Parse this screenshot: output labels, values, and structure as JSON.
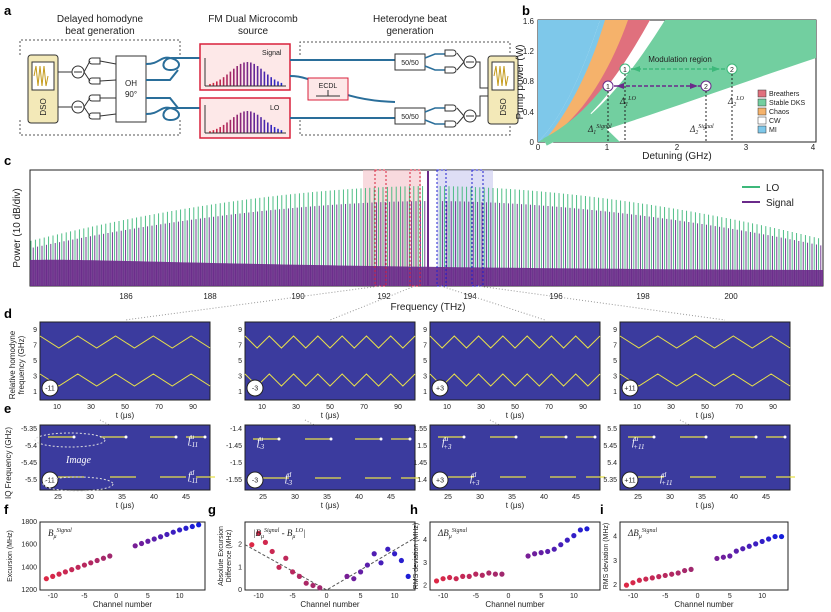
{
  "panel_labels": {
    "a": "a",
    "b": "b",
    "c": "c",
    "d": "d",
    "e": "e",
    "f": "f",
    "g": "g",
    "h": "h",
    "i": "i"
  },
  "colors": {
    "plot_bg": "#3b3b9e",
    "lo": "#3db87a",
    "signal": "#6a2a8a",
    "red": "#d9203b",
    "blue": "#2020d0",
    "yellow": "#e8e04a",
    "mi": "#7ec8ea",
    "chaos": "#f5b26b",
    "breathers": "#e0707d",
    "dks": "#72cfa0"
  },
  "a": {
    "homodyne_title_1": "Delayed homodyne",
    "homodyne_title_2": "beat generation",
    "source_title_1": "FM Dual Microcomb",
    "source_title_2": "source",
    "heterodyne_title_1": "Heterodyne beat",
    "heterodyne_title_2": "generation",
    "dso_left": "DSO",
    "dso_right": "DSO",
    "oh_line1": "OH",
    "oh_line2": "90°",
    "signal_label": "Signal",
    "lo_label": "LO",
    "ecdl_label": "ECDL",
    "coupler_top": "50/50",
    "coupler_bottom": "50/50"
  },
  "b": {
    "ylabel": "Pump power (W)",
    "xlabel": "Detuning (GHz)",
    "xticks": [
      "0",
      "1",
      "2",
      "3",
      "4"
    ],
    "yticks": [
      "0",
      "0.4",
      "0.8",
      "1.2",
      "1.6"
    ],
    "region_label": "Modulation region",
    "legend": [
      {
        "label": "Breathers",
        "color": "#e0707d"
      },
      {
        "label": "Stable DKS",
        "color": "#72cfa0"
      },
      {
        "label": "Chaos",
        "color": "#f5b26b"
      },
      {
        "label": "CW",
        "color": "#ffffff"
      },
      {
        "label": "MI",
        "color": "#7ec8ea"
      }
    ],
    "points": [
      "1",
      "2",
      "1",
      "2"
    ],
    "deltas": {
      "d1s": "Δ",
      "d1s_sub": "1",
      "d1s_sup": "Signal",
      "d1lo": "Δ",
      "d1lo_sub": "1",
      "d1lo_sup": "LO",
      "d2s": "Δ",
      "d2s_sub": "2",
      "d2s_sup": "Signal",
      "d2lo": "Δ",
      "d2lo_sub": "2",
      "d2lo_sup": "LO"
    }
  },
  "c": {
    "ylabel": "Power (10 dB/div)",
    "xlabel": "Frequency (THz)",
    "xticks": [
      "186",
      "188",
      "190",
      "192",
      "194",
      "196",
      "198",
      "200"
    ],
    "legend": [
      {
        "label": "LO",
        "color": "#3db87a"
      },
      {
        "label": "Signal",
        "color": "#6a2a8a"
      }
    ]
  },
  "d": {
    "ylabel_1": "Relative homodyne",
    "ylabel_2": "frequency (GHz)",
    "xlabel": "t (μs)",
    "yticks": [
      "1",
      "3",
      "5",
      "7",
      "9"
    ],
    "xticks": [
      "10",
      "30",
      "50",
      "70",
      "90"
    ],
    "channels": [
      "-11",
      "-3",
      "+3",
      "+11"
    ]
  },
  "e": {
    "ylabel": "IQ Frequency (GHz)",
    "xlabel": "t (μs)",
    "xticks": [
      "25",
      "30",
      "35",
      "40",
      "45"
    ],
    "channels": [
      "-11",
      "-3",
      "+3",
      "+11"
    ],
    "image_label": "Image",
    "panels": [
      {
        "yticks": [
          "-5.35",
          "-5.4",
          "-5.45",
          "-5.5"
        ],
        "fu": "f",
        "fu_sup": "u",
        "fu_sub": "-11",
        "fd": "f",
        "fd_sup": "d",
        "fd_sub": "-11"
      },
      {
        "yticks": [
          "-1.4",
          "-1.45",
          "-1.5",
          "-1.55"
        ],
        "fu": "f",
        "fu_sup": "u",
        "fu_sub": "-3",
        "fd": "f",
        "fd_sup": "d",
        "fd_sub": "-3"
      },
      {
        "yticks": [
          "1.55",
          "1.5",
          "1.45",
          "1.4"
        ],
        "fu": "f",
        "fu_sup": "u",
        "fu_sub": "+3",
        "fd": "f",
        "fd_sup": "d",
        "fd_sub": "+3"
      },
      {
        "yticks": [
          "5.5",
          "5.45",
          "5.4",
          "5.35"
        ],
        "fu": "f",
        "fu_sup": "u",
        "fu_sub": "+11",
        "fd": "f",
        "fd_sup": "d",
        "fd_sub": "+11"
      }
    ]
  },
  "f": {
    "ylabel": "Excursion (MHz)",
    "xlabel": "Channel number",
    "yticks": [
      "1200",
      "1400",
      "1600",
      "1800"
    ],
    "xticks": [
      "-10",
      "-5",
      "0",
      "5",
      "10"
    ],
    "annot": "B",
    "annot_sub": "μ",
    "annot_sup": "Signal"
  },
  "g": {
    "ylabel_1": "Absolute Excursion",
    "ylabel_2": "Difference (MHz)",
    "xlabel": "Channel number",
    "yticks": [
      "0",
      "1",
      "2"
    ],
    "xticks": [
      "-10",
      "-5",
      "0",
      "5",
      "10"
    ],
    "annot": "|B",
    "annot_sub": "μ",
    "annot_sup": "Signal",
    "annot2": " - B",
    "annot2_sub": "μ",
    "annot2_sup": "LO",
    "annot_end": "|"
  },
  "h": {
    "ylabel": "RMS deviation (MHz)",
    "xlabel": "Channel number",
    "yticks": [
      "2",
      "3",
      "4"
    ],
    "xticks": [
      "-10",
      "-5",
      "0",
      "5",
      "10"
    ],
    "annot": "ΔB",
    "annot_sub": "μ",
    "annot_sup": "Signal"
  },
  "i": {
    "ylabel": "RMS deviation (MHz)",
    "xlabel": "Channel number",
    "yticks": [
      "2",
      "3",
      "4"
    ],
    "xticks": [
      "-10",
      "-5",
      "0",
      "5",
      "10"
    ],
    "annot": "ΔB",
    "annot_sub": "μ",
    "annot_sup": "Signal"
  },
  "chart_data": [
    {
      "type": "scatter",
      "panel": "f",
      "x": [
        -11,
        -10,
        -9,
        -8,
        -7,
        -6,
        -5,
        -4,
        -3,
        -2,
        -1,
        3,
        4,
        5,
        6,
        7,
        8,
        9,
        10,
        11,
        12,
        13
      ],
      "y": [
        1300,
        1320,
        1340,
        1360,
        1380,
        1400,
        1420,
        1440,
        1460,
        1480,
        1500,
        1590,
        1610,
        1630,
        1650,
        1670,
        1690,
        1710,
        1730,
        1745,
        1760,
        1775
      ],
      "xlim": [
        -12,
        14
      ],
      "ylim": [
        1200,
        1800
      ]
    },
    {
      "type": "scatter",
      "panel": "g",
      "x": [
        -11,
        -10,
        -9,
        -8,
        -7,
        -6,
        -5,
        -4,
        -3,
        -2,
        -1,
        3,
        4,
        5,
        6,
        7,
        8,
        9,
        10,
        11,
        12
      ],
      "y": [
        2.0,
        2.5,
        2.1,
        1.7,
        1.0,
        1.4,
        0.8,
        0.6,
        0.3,
        0.2,
        0.1,
        0.6,
        0.5,
        0.8,
        1.1,
        1.6,
        1.2,
        1.8,
        1.6,
        1.3,
        0.6
      ],
      "xlim": [
        -12,
        13
      ],
      "ylim": [
        0,
        3
      ]
    },
    {
      "type": "scatter",
      "panel": "h",
      "x": [
        -11,
        -10,
        -9,
        -8,
        -7,
        -6,
        -5,
        -4,
        -3,
        -2,
        -1,
        3,
        4,
        5,
        6,
        7,
        8,
        9,
        10,
        11,
        12
      ],
      "y": [
        2.2,
        2.3,
        2.35,
        2.3,
        2.4,
        2.4,
        2.5,
        2.45,
        2.55,
        2.5,
        2.5,
        3.3,
        3.4,
        3.45,
        3.5,
        3.6,
        3.8,
        4.0,
        4.2,
        4.45,
        4.5
      ],
      "xlim": [
        -12,
        14
      ],
      "ylim": [
        1.8,
        4.8
      ]
    },
    {
      "type": "scatter",
      "panel": "i",
      "x": [
        -11,
        -10,
        -9,
        -8,
        -7,
        -6,
        -5,
        -4,
        -3,
        -2,
        -1,
        3,
        4,
        5,
        6,
        7,
        8,
        9,
        10,
        11,
        12,
        13
      ],
      "y": [
        2.0,
        2.1,
        2.2,
        2.25,
        2.3,
        2.35,
        2.4,
        2.45,
        2.5,
        2.6,
        2.65,
        3.1,
        3.15,
        3.2,
        3.4,
        3.5,
        3.6,
        3.7,
        3.8,
        3.9,
        4.0,
        4.0
      ],
      "xlim": [
        -12,
        14
      ],
      "ylim": [
        1.8,
        4.6
      ]
    }
  ]
}
